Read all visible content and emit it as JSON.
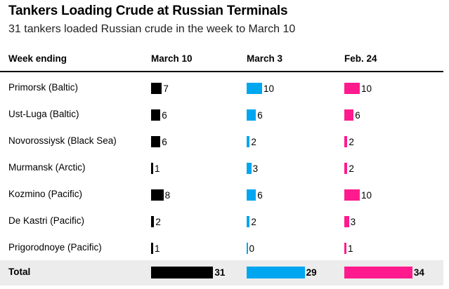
{
  "title": "Tankers Loading Crude at Russian Terminals",
  "subtitle": "31 tankers loaded Russian crude in the week to March 10",
  "header": {
    "label_col": "Week ending",
    "weeks": [
      "March 10",
      "March 3",
      "Feb. 24"
    ]
  },
  "colors": {
    "march_10": "#000000",
    "march_3": "#00a6f0",
    "feb_24": "#ff1b8d",
    "total_row_bg": "#ececec"
  },
  "chart_data": {
    "type": "table",
    "title": "Tankers Loading Crude at Russian Terminals",
    "subtitle": "31 tankers loaded Russian crude in the week to March 10",
    "columns": [
      "March 10",
      "March 3",
      "Feb. 24"
    ],
    "rows": [
      {
        "label": "Primorsk (Baltic)",
        "values": [
          7,
          10,
          10
        ]
      },
      {
        "label": "Ust-Luga (Baltic)",
        "values": [
          6,
          6,
          6
        ]
      },
      {
        "label": "Novorossiysk (Black Sea)",
        "values": [
          6,
          2,
          2
        ]
      },
      {
        "label": "Murmansk (Arctic)",
        "values": [
          1,
          3,
          2
        ]
      },
      {
        "label": "Kozmino (Pacific)",
        "values": [
          8,
          6,
          10
        ]
      },
      {
        "label": "De Kastri (Pacific)",
        "values": [
          2,
          2,
          3
        ]
      },
      {
        "label": "Prigorodnoye (Pacific)",
        "values": [
          1,
          0,
          1
        ]
      }
    ],
    "total": {
      "label": "Total",
      "values": [
        31,
        29,
        34
      ]
    }
  }
}
